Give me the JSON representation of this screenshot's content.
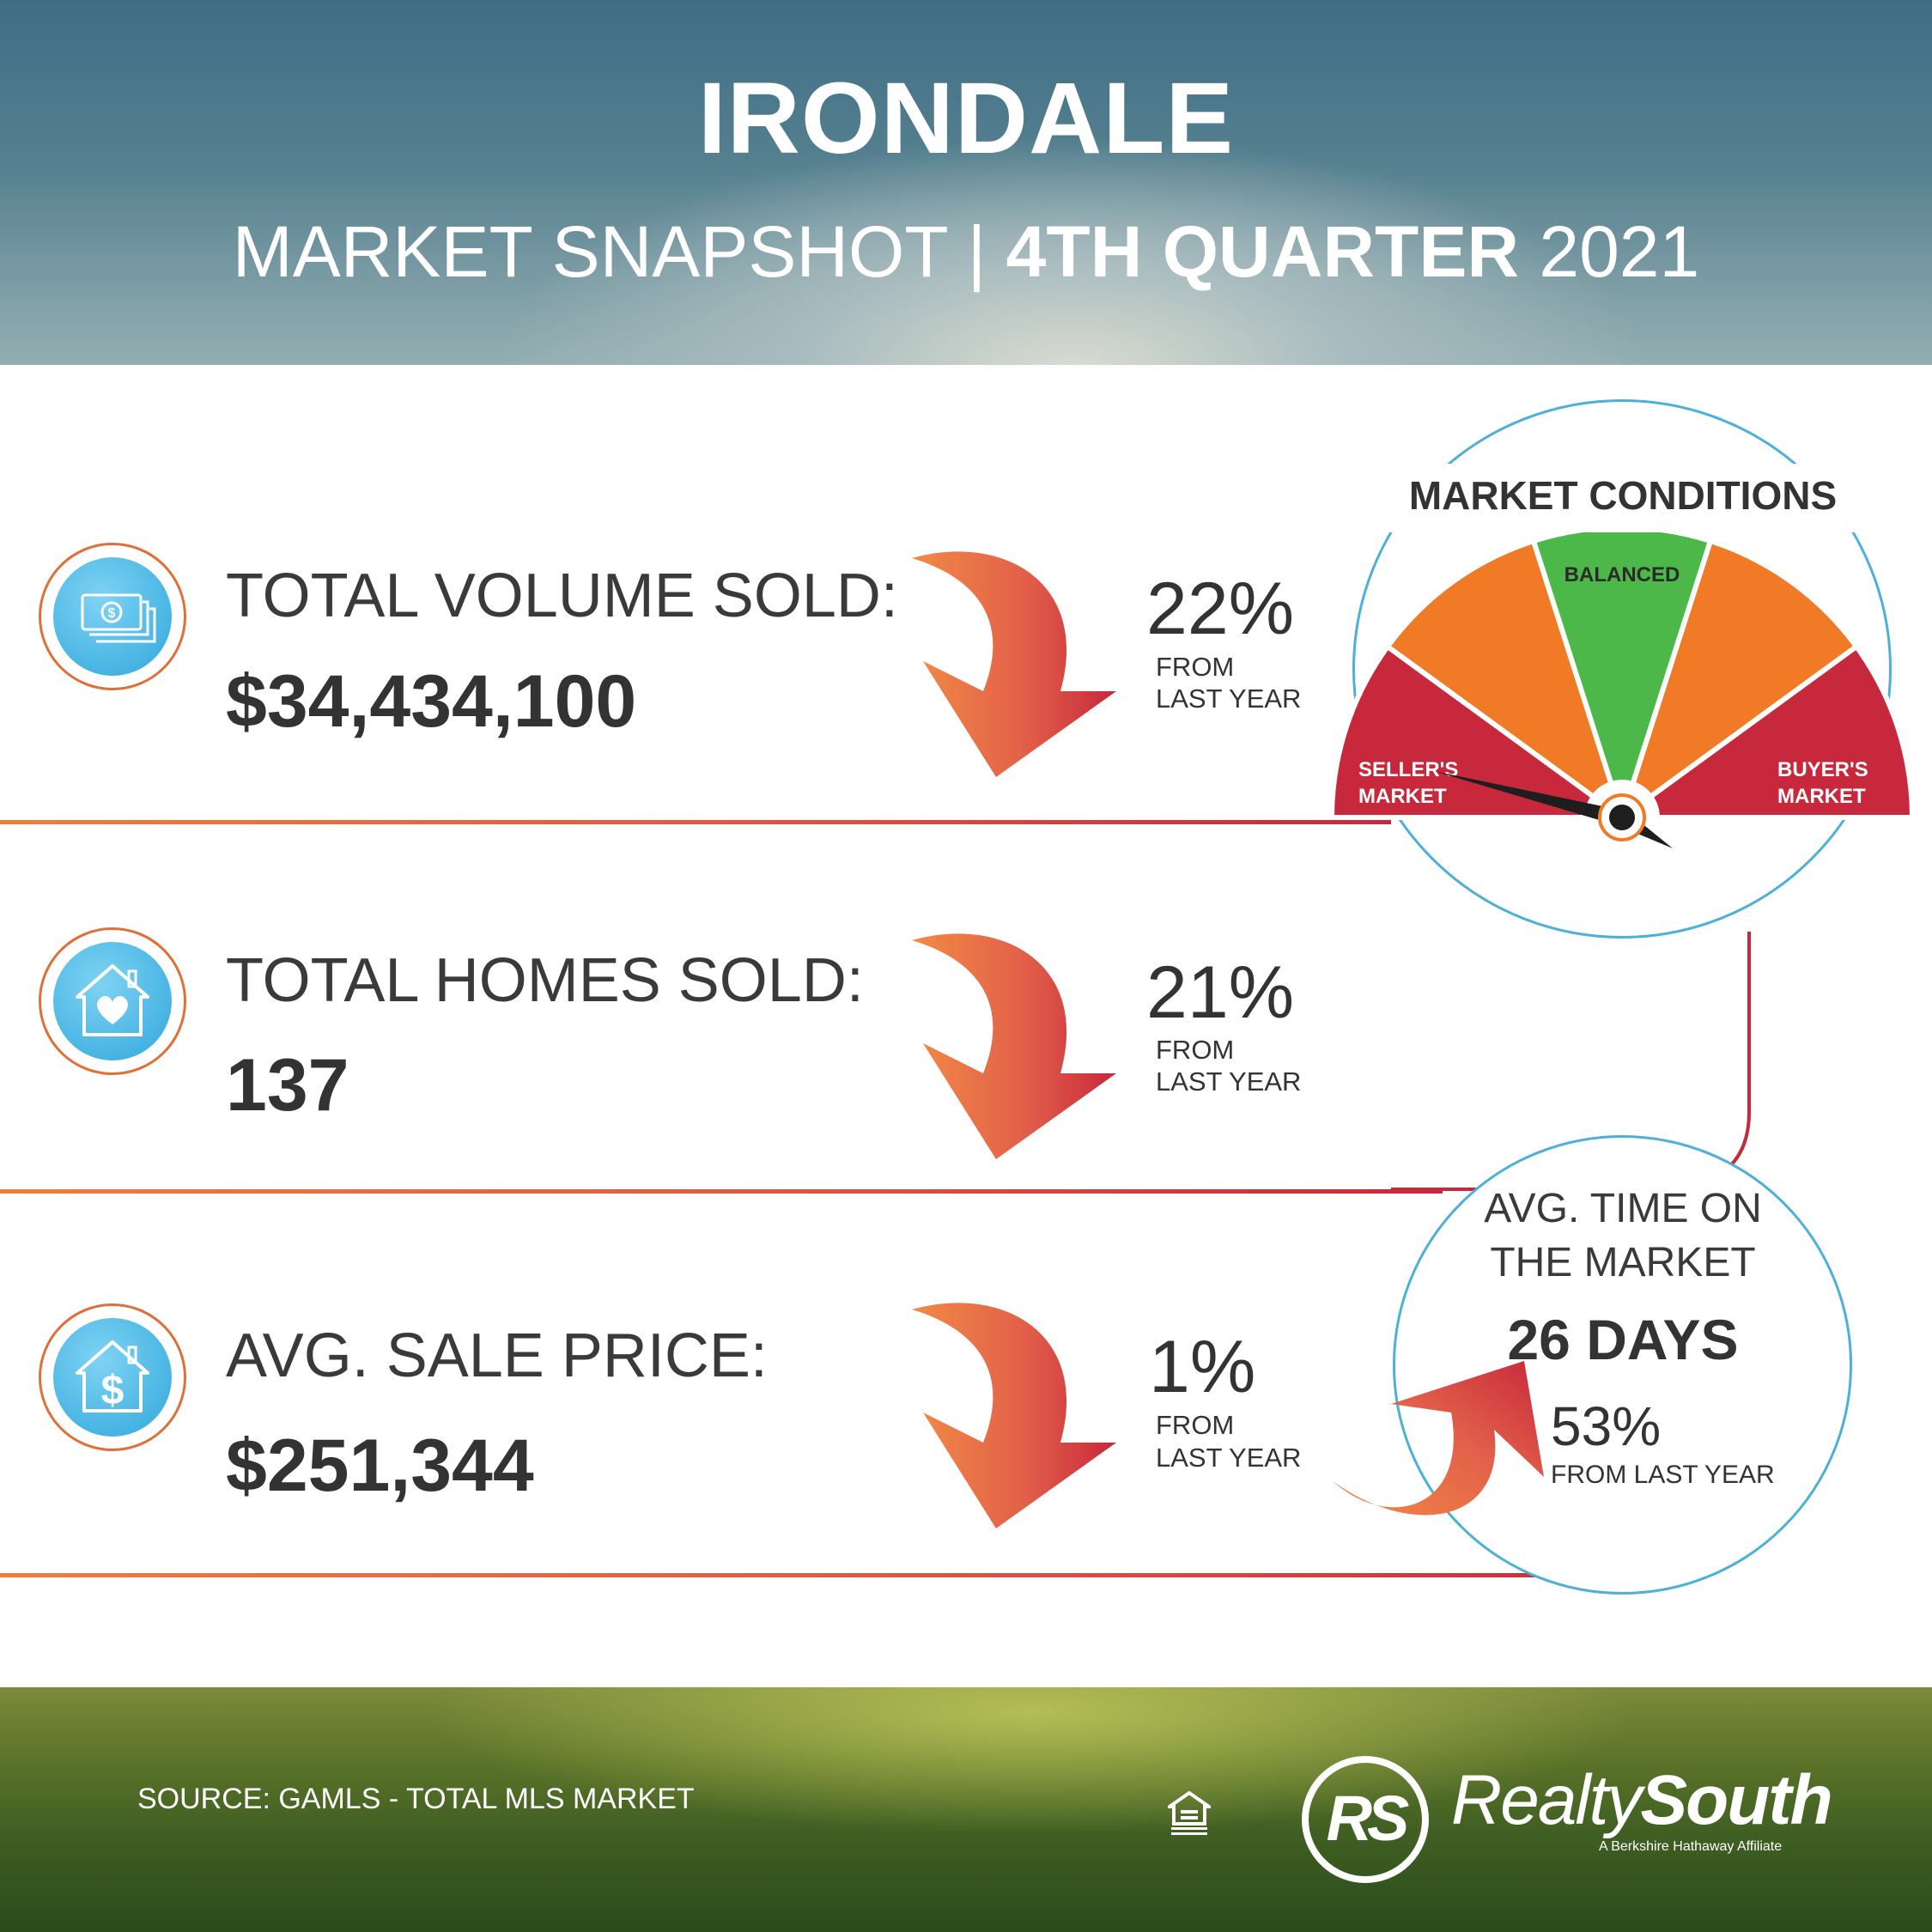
{
  "header": {
    "title": "IRONDALE",
    "subtitle_light": "MARKET SNAPSHOT | ",
    "subtitle_bold": "4TH QUARTER",
    "subtitle_year": " 2021"
  },
  "stats": [
    {
      "label": "TOTAL VOLUME SOLD:",
      "value": "$34,434,100",
      "change": "22%",
      "from1": "FROM",
      "from2": "LAST YEAR",
      "direction": "down",
      "icon": "money-icon"
    },
    {
      "label": "TOTAL HOMES SOLD:",
      "value": "137",
      "change": "21%",
      "from1": "FROM",
      "from2": "LAST YEAR",
      "direction": "down",
      "icon": "house-heart-icon"
    },
    {
      "label": "AVG. SALE PRICE:",
      "value": "$251,344",
      "change": "1%",
      "from1": "FROM",
      "from2": "LAST YEAR",
      "direction": "down",
      "icon": "house-dollar-icon"
    }
  ],
  "market_conditions": {
    "title": "MARKET CONDITIONS",
    "segments": [
      "SELLER'S",
      "MARKET",
      "BALANCED",
      "BUYER'S",
      "MARKET"
    ],
    "needle_position": "seller's market",
    "colors": {
      "red": "#c8283c",
      "orange": "#f07a26",
      "green": "#4db84a"
    }
  },
  "time_on_market": {
    "line1": "AVG. TIME ON",
    "line2": "THE MARKET",
    "value": "26 DAYS",
    "change": "53%",
    "change_label": "FROM LAST YEAR",
    "direction": "up"
  },
  "footer": {
    "source": "SOURCE: GAMLS - TOTAL MLS MARKET",
    "brand_light": "Realty",
    "brand_bold": "South",
    "logo_letters": "RS",
    "tagline": "A Berkshire Hathaway Affiliate",
    "eho_icon": "equal-housing-icon"
  }
}
